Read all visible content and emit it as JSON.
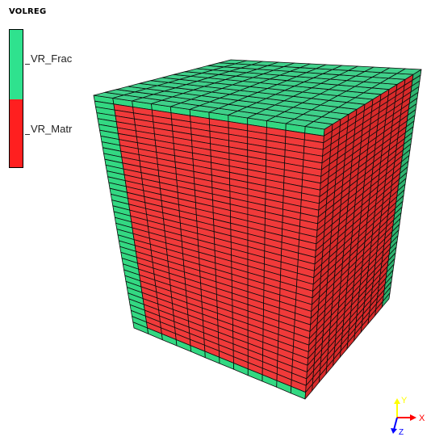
{
  "legend": {
    "title": "VOLREG",
    "items": [
      {
        "label": "VR_Frac",
        "color": "#2fe28e"
      },
      {
        "label": "VR_Matr",
        "color": "#ff1f1f"
      }
    ]
  },
  "colors": {
    "frac_top": "#3fd08a",
    "frac_right": "#2eb46f",
    "frac_front": "#33d882",
    "matr_front": "#f03a3a",
    "matr_right": "#d82a2a",
    "mesh_line": "#0c0c0c"
  },
  "axes": {
    "x_label": "X",
    "y_label": "Y",
    "z_label": "Z",
    "x_color": "#ff0000",
    "y_color": "#ffff00",
    "z_color": "#0000ff"
  }
}
